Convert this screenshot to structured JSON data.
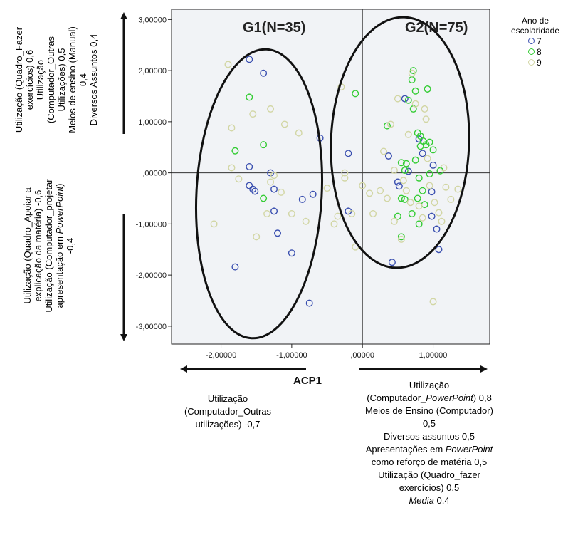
{
  "chart_data": {
    "type": "scatter",
    "xlabel": "ACP1",
    "ylabel": "",
    "xlim": [
      -2.7,
      1.8
    ],
    "ylim": [
      -3.35,
      3.2
    ],
    "x_ticks": [
      "-2,00000",
      "-1,00000",
      ",00000",
      "1,00000"
    ],
    "x_tick_values": [
      -2,
      -1,
      0,
      1
    ],
    "y_ticks": [
      "3,00000",
      "2,00000",
      "1,00000",
      ",00000",
      "-1,00000",
      "-2,00000",
      "-3,00000"
    ],
    "y_tick_values": [
      3,
      2,
      1,
      0,
      -1,
      -2,
      -3
    ],
    "group_labels": [
      "G1(N=35)",
      "G2(N=75)"
    ],
    "legend": {
      "title_line1": "Ano de",
      "title_line2": "escolaridade",
      "placement": "top-right",
      "entries": [
        "7",
        "8",
        "9"
      ]
    },
    "series": [
      {
        "name": "7",
        "color": "#3b50b0",
        "points": [
          [
            -1.6,
            2.22
          ],
          [
            -1.4,
            1.95
          ],
          [
            -1.6,
            0.12
          ],
          [
            -1.3,
            0.0
          ],
          [
            -1.6,
            -0.25
          ],
          [
            -1.55,
            -0.32
          ],
          [
            -1.52,
            -0.36
          ],
          [
            -1.25,
            -0.32
          ],
          [
            -1.25,
            -0.75
          ],
          [
            -1.2,
            -1.18
          ],
          [
            -1.0,
            -1.57
          ],
          [
            -1.8,
            -1.84
          ],
          [
            -0.85,
            -0.52
          ],
          [
            -0.7,
            -0.42
          ],
          [
            -0.6,
            0.68
          ],
          [
            -0.2,
            0.38
          ],
          [
            -0.2,
            -0.75
          ],
          [
            0.37,
            0.33
          ],
          [
            0.5,
            -0.18
          ],
          [
            0.52,
            -0.26
          ],
          [
            0.6,
            1.45
          ],
          [
            0.65,
            0.03
          ],
          [
            0.8,
            0.66
          ],
          [
            0.85,
            0.38
          ],
          [
            1.0,
            0.15
          ],
          [
            0.98,
            -0.37
          ],
          [
            0.98,
            -0.85
          ],
          [
            1.05,
            -1.1
          ],
          [
            1.08,
            -1.5
          ],
          [
            0.42,
            -1.75
          ],
          [
            -0.75,
            -2.55
          ]
        ]
      },
      {
        "name": "8",
        "color": "#33cc33",
        "points": [
          [
            -1.6,
            1.48
          ],
          [
            -1.8,
            0.43
          ],
          [
            -1.4,
            0.55
          ],
          [
            -1.4,
            -0.5
          ],
          [
            -0.1,
            1.55
          ],
          [
            0.35,
            0.92
          ],
          [
            0.55,
            0.2
          ],
          [
            0.62,
            0.18
          ],
          [
            0.65,
            1.42
          ],
          [
            0.7,
            1.82
          ],
          [
            0.72,
            1.25
          ],
          [
            0.75,
            1.6
          ],
          [
            0.78,
            0.78
          ],
          [
            0.82,
            0.72
          ],
          [
            0.86,
            0.62
          ],
          [
            0.9,
            0.55
          ],
          [
            0.92,
            1.64
          ],
          [
            0.95,
            0.6
          ],
          [
            1.0,
            0.45
          ],
          [
            0.6,
            0.05
          ],
          [
            0.75,
            0.25
          ],
          [
            0.8,
            -0.1
          ],
          [
            0.85,
            -0.35
          ],
          [
            0.78,
            -0.5
          ],
          [
            0.88,
            -0.62
          ],
          [
            0.7,
            -0.8
          ],
          [
            0.8,
            -1.0
          ],
          [
            0.55,
            -0.5
          ],
          [
            0.6,
            -0.52
          ],
          [
            0.5,
            -0.85
          ],
          [
            0.55,
            -1.25
          ],
          [
            1.1,
            0.04
          ],
          [
            0.95,
            -0.02
          ],
          [
            0.82,
            0.52
          ],
          [
            0.72,
            2.0
          ]
        ]
      },
      {
        "name": "9",
        "color": "#d2d6a4",
        "points": [
          [
            -1.9,
            2.12
          ],
          [
            -1.85,
            0.88
          ],
          [
            -1.85,
            0.1
          ],
          [
            -1.55,
            1.15
          ],
          [
            -1.3,
            1.25
          ],
          [
            -1.1,
            0.95
          ],
          [
            -0.9,
            0.78
          ],
          [
            -1.75,
            -0.12
          ],
          [
            -1.3,
            -0.18
          ],
          [
            -1.25,
            -0.05
          ],
          [
            -1.15,
            -0.38
          ],
          [
            -1.35,
            -0.8
          ],
          [
            -1.5,
            -1.25
          ],
          [
            -2.1,
            -1.0
          ],
          [
            -1.0,
            -0.8
          ],
          [
            -0.8,
            -0.95
          ],
          [
            -0.5,
            -0.3
          ],
          [
            -0.4,
            -1.0
          ],
          [
            -0.35,
            -0.85
          ],
          [
            -0.3,
            1.68
          ],
          [
            -0.25,
            0.0
          ],
          [
            -0.25,
            -0.1
          ],
          [
            -0.15,
            -0.8
          ],
          [
            -0.1,
            -1.45
          ],
          [
            0.0,
            -0.25
          ],
          [
            0.1,
            -0.4
          ],
          [
            0.15,
            -0.8
          ],
          [
            0.25,
            -0.35
          ],
          [
            0.3,
            0.42
          ],
          [
            0.35,
            -0.5
          ],
          [
            0.4,
            0.95
          ],
          [
            0.45,
            -0.95
          ],
          [
            0.5,
            1.45
          ],
          [
            0.55,
            -1.3
          ],
          [
            0.62,
            -0.35
          ],
          [
            0.65,
            0.75
          ],
          [
            0.68,
            -0.58
          ],
          [
            0.7,
            1.95
          ],
          [
            0.75,
            1.35
          ],
          [
            0.8,
            -0.65
          ],
          [
            0.85,
            -0.88
          ],
          [
            0.9,
            1.05
          ],
          [
            0.92,
            0.28
          ],
          [
            0.95,
            -0.25
          ],
          [
            1.02,
            -0.58
          ],
          [
            1.08,
            -0.78
          ],
          [
            1.12,
            -0.95
          ],
          [
            1.18,
            -0.28
          ],
          [
            1.25,
            -0.52
          ],
          [
            1.35,
            -0.32
          ],
          [
            1.0,
            -2.52
          ],
          [
            0.58,
            -0.15
          ],
          [
            1.15,
            0.1
          ],
          [
            0.88,
            1.25
          ],
          [
            0.45,
            0.05
          ]
        ]
      }
    ]
  },
  "left_top_axis_label": [
    "Utilização (Quadro_Fazer",
    "exercícios) 0,6",
    "Utilização",
    "(Computador_Outras",
    "Utilizações) 0,5",
    "Meios de ensino (Manual)",
    "0,4",
    "Diversos Assuntos 0,4"
  ],
  "left_bottom_axis_label": {
    "line1": "Utilização (Quadro_Apoiar a",
    "line2": "explicação da matéria) -0,6",
    "line3": "Utilização (Computador_projetar",
    "line4_pre": "apresentação em ",
    "line4_italic": "PowerPoint",
    "line4_post": ")",
    "line5": "-0,4"
  },
  "bottom_left_label": {
    "line1": "Utilização",
    "line2": "(Computador_Outras",
    "line3": "utilizações) -0,7"
  },
  "bottom_right_label": {
    "line1": "Utilização",
    "line2_pre": "(Computador_",
    "line2_italic": "PowerPoint",
    "line2_post": ") 0,8",
    "line3": "Meios de Ensino (Computador)",
    "line4": "0,5",
    "line5": "Diversos assuntos 0,5",
    "line6_pre": "Apresentações em ",
    "line6_italic": "PowerPoint",
    "line7": "como reforço de matéria 0,5",
    "line8": "Utilização (Quadro_fazer",
    "line9": "exercícios) 0,5",
    "line10_italic": "Media",
    "line10_post": " 0,4"
  }
}
